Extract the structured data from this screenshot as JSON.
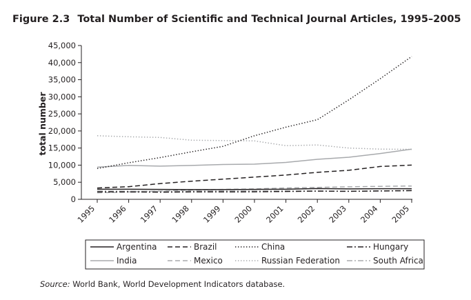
{
  "figure": {
    "number": "Figure 2.3",
    "title": "Total Number of Scientific and Technical Journal Articles, 1995–2005"
  },
  "source": {
    "label": "Source:",
    "text": "World Bank, World Development Indicators database."
  },
  "chart_data": {
    "type": "line",
    "title": "Total Number of Scientific and Technical Journal Articles, 1995–2005",
    "xlabel": "",
    "ylabel": "total number",
    "x": [
      "1995",
      "1996",
      "1997",
      "1998",
      "1999",
      "2000",
      "2001",
      "2002",
      "2003",
      "2004",
      "2005"
    ],
    "ylim": [
      0,
      45000
    ],
    "yticks": [
      0,
      5000,
      10000,
      15000,
      20000,
      25000,
      30000,
      35000,
      40000,
      45000
    ],
    "ytick_labels": [
      "0",
      "5,000",
      "10,000",
      "15,000",
      "20,000",
      "25,000",
      "30,000",
      "35,000",
      "40,000",
      "45,000"
    ],
    "grid": false,
    "legend_position": "bottom",
    "series": [
      {
        "name": "Argentina",
        "color": "#231f20",
        "dash": "solid",
        "values": [
          2950,
          2950,
          2900,
          2850,
          2850,
          2900,
          2950,
          3150,
          3050,
          3100,
          3100
        ]
      },
      {
        "name": "Brazil",
        "color": "#231f20",
        "dash": "dashed",
        "values": [
          3300,
          3700,
          4600,
          5300,
          5900,
          6500,
          7100,
          7900,
          8500,
          9600,
          10000
        ]
      },
      {
        "name": "China",
        "color": "#231f20",
        "dash": "dotted",
        "values": [
          9000,
          10700,
          12200,
          13900,
          15500,
          18600,
          21100,
          23300,
          29100,
          35300,
          41800
        ]
      },
      {
        "name": "Hungary",
        "color": "#231f20",
        "dash": "dashdot",
        "values": [
          2150,
          2150,
          2100,
          2150,
          2150,
          2200,
          2300,
          2400,
          2350,
          2450,
          2550
        ]
      },
      {
        "name": "India",
        "color": "#a7a9ac",
        "dash": "solid",
        "values": [
          9400,
          9900,
          9700,
          9900,
          10200,
          10300,
          10800,
          11700,
          12300,
          13400,
          14700
        ]
      },
      {
        "name": "Mexico",
        "color": "#a7a9ac",
        "dash": "dashed",
        "values": [
          1900,
          2150,
          2400,
          2700,
          2900,
          3050,
          3300,
          3500,
          3650,
          3800,
          3900
        ]
      },
      {
        "name": "Russian Federation",
        "color": "#a7a9ac",
        "dash": "dotted",
        "values": [
          18600,
          18300,
          18100,
          17300,
          17200,
          17100,
          15700,
          15900,
          15000,
          14700,
          14600
        ]
      },
      {
        "name": "South Africa",
        "color": "#a7a9ac",
        "dash": "dashdot",
        "values": [
          2400,
          2350,
          2300,
          2400,
          2450,
          2400,
          2450,
          2400,
          2350,
          2450,
          2550
        ]
      }
    ]
  }
}
